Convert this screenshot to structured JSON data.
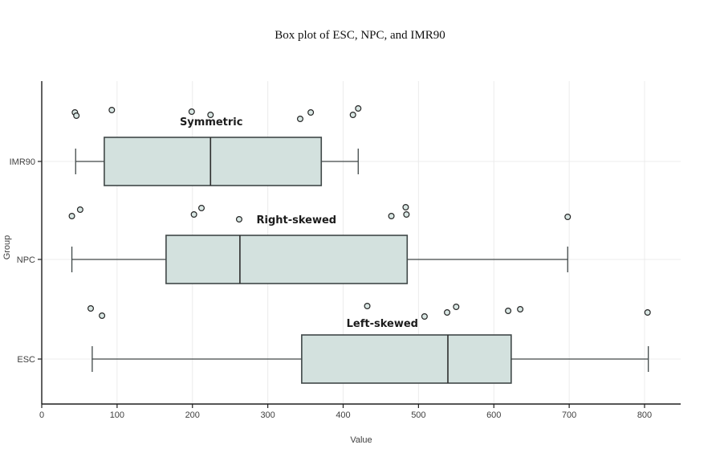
{
  "figure": {
    "title": "Box plot of ESC, NPC, and IMR90"
  },
  "chart_data": {
    "type": "boxplot",
    "orientation": "horizontal",
    "title": "Box plot of ESC, NPC, and IMR90",
    "xlabel": "Value",
    "ylabel": "Group",
    "xlim": [
      0,
      848
    ],
    "xticks": [
      0,
      100,
      200,
      300,
      400,
      500,
      600,
      700,
      800
    ],
    "ytick_labels_bottom_to_top": [
      "ESC",
      "NPC",
      "IMR90"
    ],
    "grid": "major vertical at x ticks, horizontal at each group center",
    "legend": "none",
    "colors": {
      "box_fill": "#d3e1de",
      "box_stroke": "#404848",
      "median_line": "#2d2d2d",
      "point_fill": "#d9e7e4",
      "point_stroke": "#252525",
      "gridline": "#ececec",
      "axis_line": "#1f1f1f",
      "tick_text": "#404040",
      "annotation_text": "#1c1c1c",
      "background": "#ffffff"
    },
    "groups": [
      {
        "name": "IMR90",
        "annotation": {
          "text": "Symmetric",
          "x": 225,
          "dy": -45
        },
        "stats": {
          "whisker_min": 45,
          "q1": 83,
          "median": 224,
          "q3": 371,
          "whisker_max": 420
        },
        "points": [
          {
            "x": 44,
            "dy": -61
          },
          {
            "x": 46,
            "dy": -57
          },
          {
            "x": 93,
            "dy": -64
          },
          {
            "x": 199,
            "dy": -62
          },
          {
            "x": 224,
            "dy": -58
          },
          {
            "x": 343,
            "dy": -53
          },
          {
            "x": 357,
            "dy": -61
          },
          {
            "x": 413,
            "dy": -58
          },
          {
            "x": 420,
            "dy": -66
          }
        ]
      },
      {
        "name": "NPC",
        "annotation": {
          "text": "Right-skewed",
          "x": 338,
          "dy": -45
        },
        "stats": {
          "whisker_min": 40,
          "q1": 165,
          "median": 263,
          "q3": 485,
          "whisker_max": 698
        },
        "points": [
          {
            "x": 40,
            "dy": -54
          },
          {
            "x": 51,
            "dy": -62
          },
          {
            "x": 202,
            "dy": -56
          },
          {
            "x": 212,
            "dy": -64
          },
          {
            "x": 262,
            "dy": -50
          },
          {
            "x": 464,
            "dy": -54
          },
          {
            "x": 483,
            "dy": -65
          },
          {
            "x": 484,
            "dy": -56
          },
          {
            "x": 698,
            "dy": -53
          }
        ]
      },
      {
        "name": "ESC",
        "annotation": {
          "text": "Left-skewed",
          "x": 452,
          "dy": -40
        },
        "stats": {
          "whisker_min": 67,
          "q1": 345,
          "median": 539,
          "q3": 623,
          "whisker_max": 805
        },
        "points": [
          {
            "x": 65,
            "dy": -63
          },
          {
            "x": 80,
            "dy": -54
          },
          {
            "x": 432,
            "dy": -66
          },
          {
            "x": 508,
            "dy": -53
          },
          {
            "x": 538,
            "dy": -58
          },
          {
            "x": 550,
            "dy": -65
          },
          {
            "x": 619,
            "dy": -60
          },
          {
            "x": 635,
            "dy": -62
          },
          {
            "x": 804,
            "dy": -58
          }
        ]
      }
    ]
  }
}
